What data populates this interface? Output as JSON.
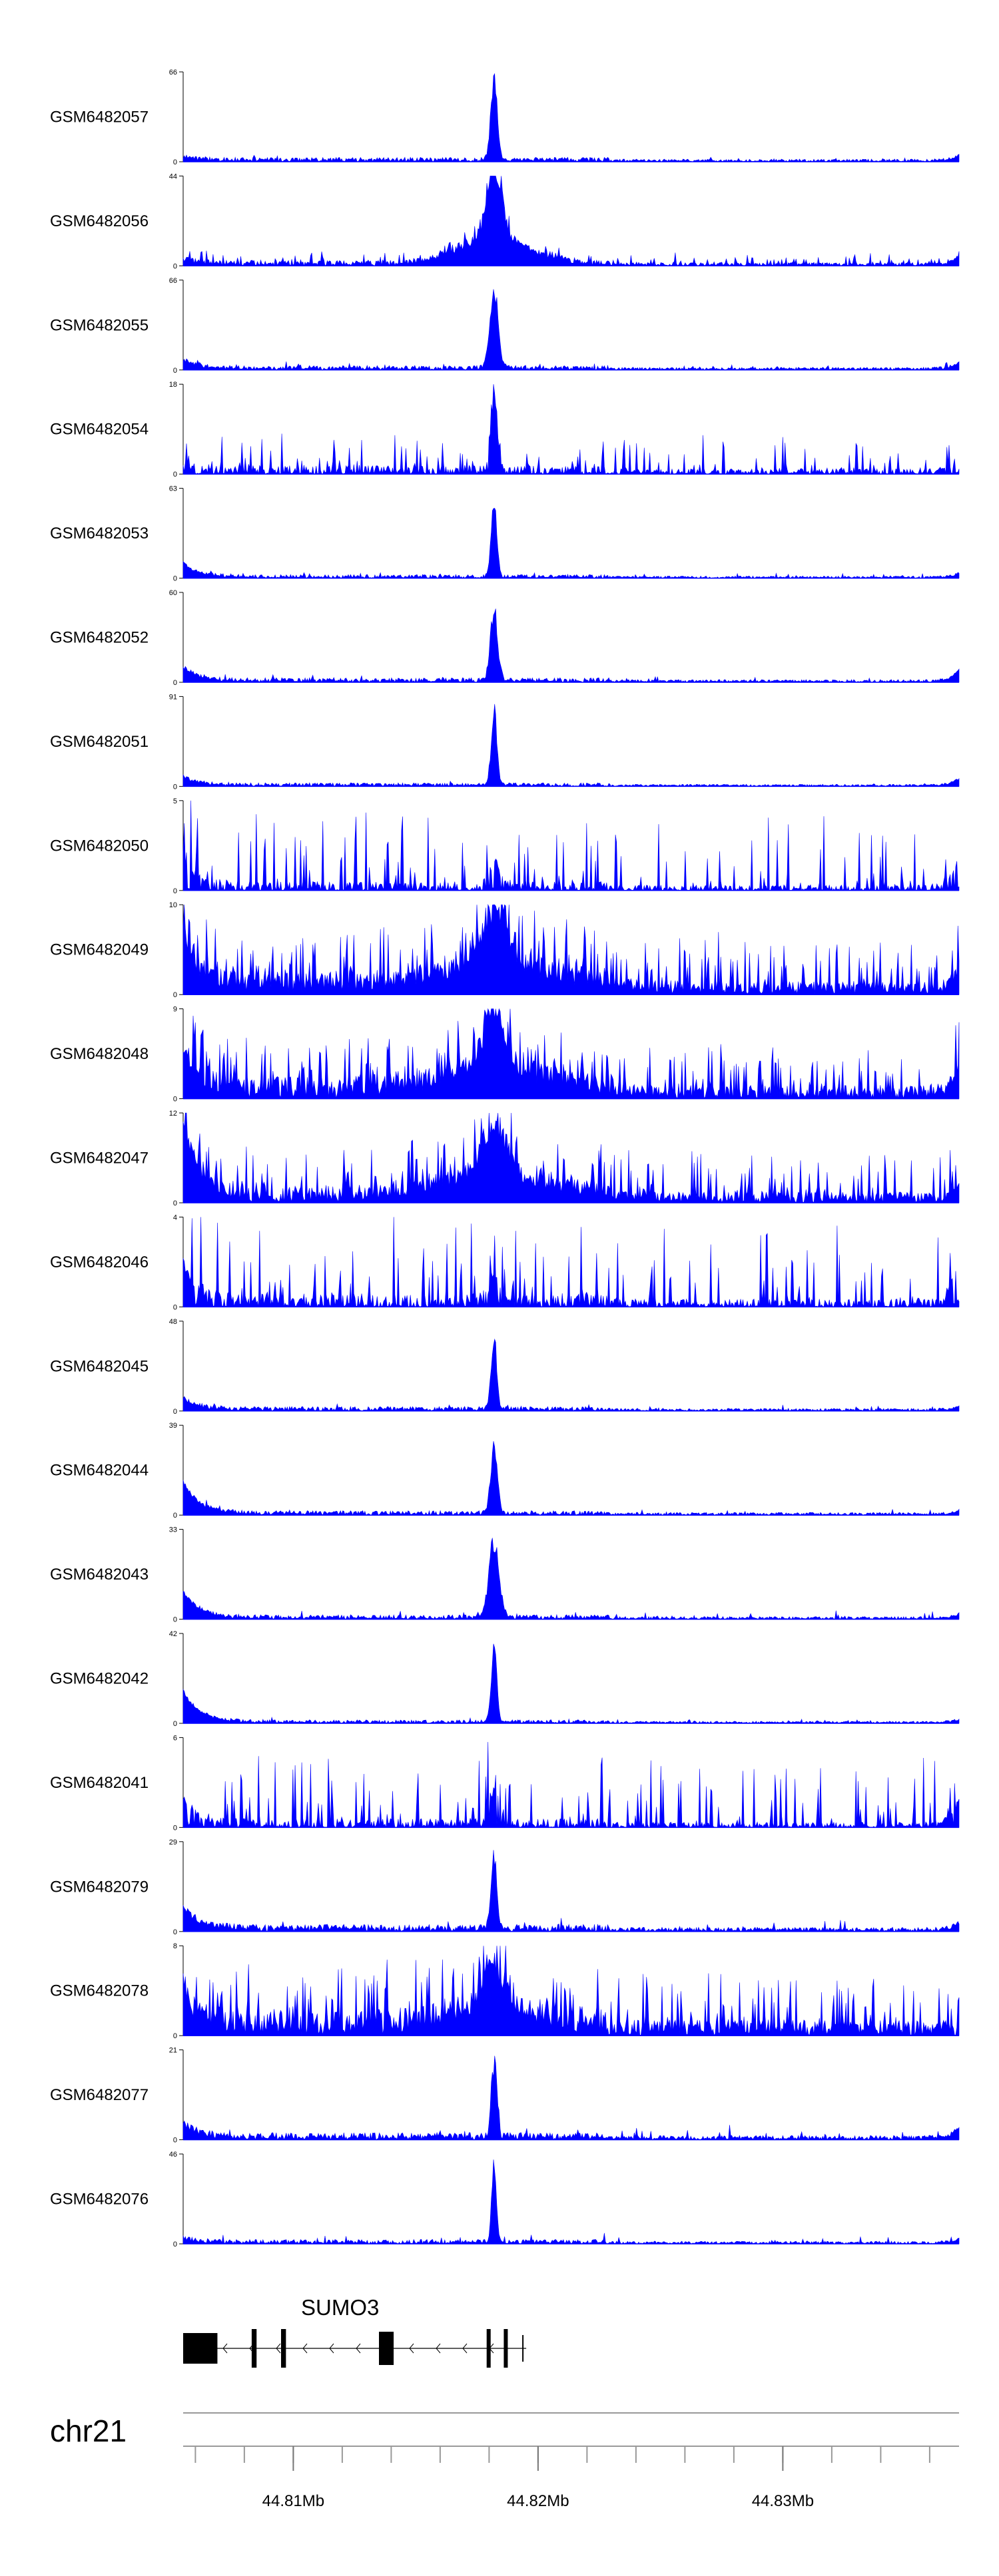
{
  "chart_data": {
    "type": "area",
    "color": "#0000ff",
    "region_kb": [
      44.8055,
      44.8372
    ],
    "peak_kb": 44.8182,
    "tracks": [
      {
        "name": "GSM6482057",
        "ymax": "66",
        "max": 66,
        "noise": 0.05,
        "peak": 1.0,
        "width": 0.35,
        "spike": 0.03,
        "style": "peak",
        "seed": 11,
        "start": 0.03,
        "end": 0.07
      },
      {
        "name": "GSM6482056",
        "ymax": "44",
        "max": 44,
        "noise": 0.06,
        "peak": 1.0,
        "width": 0.75,
        "spike": 0.12,
        "style": "broad",
        "seed": 12,
        "start": 0.05,
        "end": 0.1
      },
      {
        "name": "GSM6482055",
        "ymax": "66",
        "max": 66,
        "noise": 0.05,
        "peak": 1.0,
        "width": 0.45,
        "spike": 0.05,
        "style": "peak",
        "seed": 13,
        "start": 0.1,
        "end": 0.08
      },
      {
        "name": "GSM6482054",
        "ymax": "18",
        "max": 18,
        "noise": 0.1,
        "peak": 1.0,
        "width": 0.35,
        "spike": 0.42,
        "style": "spiky",
        "seed": 14,
        "start": 0.05,
        "end": 0.2
      },
      {
        "name": "GSM6482053",
        "ymax": "63",
        "max": 63,
        "noise": 0.04,
        "peak": 1.0,
        "width": 0.3,
        "spike": 0.05,
        "style": "peak",
        "seed": 15,
        "start": 0.15,
        "end": 0.05
      },
      {
        "name": "GSM6482052",
        "ymax": "60",
        "max": 60,
        "noise": 0.05,
        "peak": 0.9,
        "width": 0.4,
        "spike": 0.04,
        "style": "peak",
        "seed": 16,
        "start": 0.15,
        "end": 0.12
      },
      {
        "name": "GSM6482051",
        "ymax": "91",
        "max": 91,
        "noise": 0.04,
        "peak": 0.95,
        "width": 0.3,
        "spike": 0.03,
        "style": "peak",
        "seed": 17,
        "start": 0.1,
        "end": 0.08
      },
      {
        "name": "GSM6482050",
        "ymax": "5",
        "max": 5,
        "noise": 0.1,
        "peak": 0.3,
        "width": 0.6,
        "spike": 0.85,
        "style": "spiky",
        "seed": 18,
        "start": 0.3,
        "end": 0.4
      },
      {
        "name": "GSM6482049",
        "ymax": "10",
        "max": 10,
        "noise": 0.25,
        "peak": 0.7,
        "width": 1.5,
        "spike": 0.55,
        "style": "dense",
        "seed": 19,
        "start": 0.6,
        "end": 0.25
      },
      {
        "name": "GSM6482048",
        "ymax": "9",
        "max": 9,
        "noise": 0.25,
        "peak": 0.75,
        "width": 1.2,
        "spike": 0.5,
        "style": "dense",
        "seed": 20,
        "start": 0.5,
        "end": 0.3
      },
      {
        "name": "GSM6482047",
        "ymax": "12",
        "max": 12,
        "noise": 0.2,
        "peak": 0.7,
        "width": 1.3,
        "spike": 0.5,
        "style": "dense",
        "seed": 21,
        "start": 0.8,
        "end": 0.15
      },
      {
        "name": "GSM6482046",
        "ymax": "4",
        "max": 4,
        "noise": 0.15,
        "peak": 0.3,
        "width": 0.6,
        "spike": 0.9,
        "style": "spiky",
        "seed": 22,
        "start": 0.4,
        "end": 0.6
      },
      {
        "name": "GSM6482045",
        "ymax": "48",
        "max": 48,
        "noise": 0.05,
        "peak": 0.95,
        "width": 0.3,
        "spike": 0.05,
        "style": "peak",
        "seed": 23,
        "start": 0.12,
        "end": 0.04
      },
      {
        "name": "GSM6482044",
        "ymax": "39",
        "max": 39,
        "noise": 0.05,
        "peak": 0.95,
        "width": 0.35,
        "spike": 0.06,
        "style": "peak",
        "seed": 24,
        "start": 0.35,
        "end": 0.04
      },
      {
        "name": "GSM6482043",
        "ymax": "33",
        "max": 33,
        "noise": 0.05,
        "peak": 0.95,
        "width": 0.55,
        "spike": 0.08,
        "style": "peak",
        "seed": 25,
        "start": 0.3,
        "end": 0.05
      },
      {
        "name": "GSM6482042",
        "ymax": "42",
        "max": 42,
        "noise": 0.04,
        "peak": 0.95,
        "width": 0.3,
        "spike": 0.04,
        "style": "peak",
        "seed": 26,
        "start": 0.35,
        "end": 0.03
      },
      {
        "name": "GSM6482041",
        "ymax": "6",
        "max": 6,
        "noise": 0.1,
        "peak": 0.45,
        "width": 0.6,
        "spike": 0.75,
        "style": "spiky",
        "seed": 27,
        "start": 0.3,
        "end": 0.3
      },
      {
        "name": "GSM6482079",
        "ymax": "29",
        "max": 29,
        "noise": 0.08,
        "peak": 0.95,
        "width": 0.3,
        "spike": 0.12,
        "style": "peak",
        "seed": 28,
        "start": 0.25,
        "end": 0.08
      },
      {
        "name": "GSM6482078",
        "ymax": "8",
        "max": 8,
        "noise": 0.3,
        "peak": 0.6,
        "width": 1.0,
        "spike": 0.6,
        "style": "dense",
        "seed": 29,
        "start": 0.4,
        "end": 0.0
      },
      {
        "name": "GSM6482077",
        "ymax": "21",
        "max": 21,
        "noise": 0.08,
        "peak": 1.0,
        "width": 0.3,
        "spike": 0.14,
        "style": "peak",
        "seed": 30,
        "start": 0.15,
        "end": 0.12
      },
      {
        "name": "GSM6482076",
        "ymax": "46",
        "max": 46,
        "noise": 0.05,
        "peak": 1.0,
        "width": 0.25,
        "spike": 0.08,
        "style": "peak",
        "seed": 31,
        "start": 0.05,
        "end": 0.05
      }
    ],
    "gene": {
      "name": "SUMO3",
      "exons_kb": [
        [
          44.8055,
          44.8069
        ],
        [
          44.8083,
          44.8085
        ],
        [
          44.8095,
          44.8097
        ],
        [
          44.8135,
          44.8141
        ],
        [
          44.8179,
          44.818
        ],
        [
          44.8186,
          44.8187
        ]
      ],
      "intron_kb": [
        44.8055,
        44.8187
      ]
    },
    "chromosome": "chr21",
    "axis_ticks_kb": [
      44.806,
      44.808,
      44.81,
      44.812,
      44.814,
      44.816,
      44.818,
      44.82,
      44.822,
      44.824,
      44.826,
      44.828,
      44.83,
      44.832,
      44.834,
      44.836
    ],
    "axis_labels": [
      {
        "kb": 44.81,
        "text": "44.81Mb"
      },
      {
        "kb": 44.82,
        "text": "44.82Mb"
      },
      {
        "kb": 44.83,
        "text": "44.83Mb"
      }
    ]
  }
}
